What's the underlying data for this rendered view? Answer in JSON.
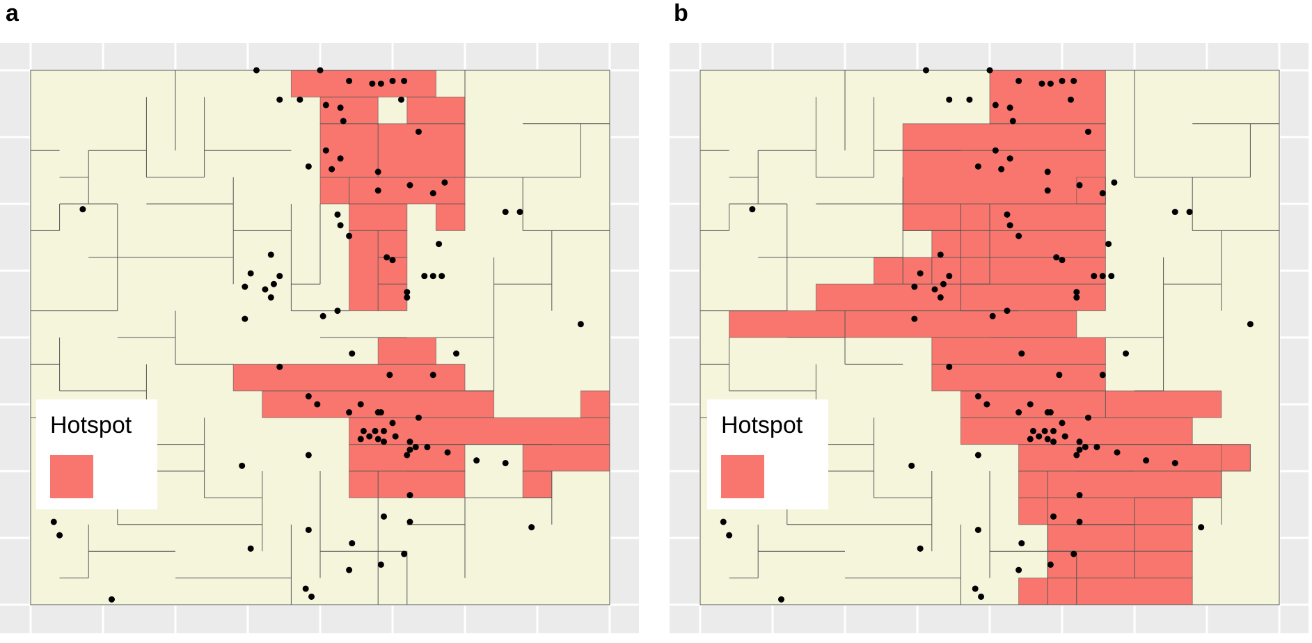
{
  "panels": [
    {
      "label": "a",
      "legend": {
        "title": "Hotspot",
        "color": "#f8766d"
      },
      "hotspot_cells": [
        [
          9,
          0,
          5,
          1
        ],
        [
          10,
          1,
          2,
          1
        ],
        [
          10,
          2,
          2,
          2
        ],
        [
          10,
          4,
          1,
          1
        ],
        [
          12,
          2,
          3,
          2
        ],
        [
          13,
          1,
          2,
          1
        ],
        [
          11,
          4,
          4,
          1
        ],
        [
          11,
          5,
          2,
          1
        ],
        [
          11,
          6,
          1,
          3
        ],
        [
          12,
          6,
          1,
          1
        ],
        [
          14,
          5,
          1,
          1
        ],
        [
          12,
          7,
          1,
          1
        ],
        [
          12,
          8,
          1,
          1
        ],
        [
          12,
          10,
          2,
          1
        ],
        [
          7,
          11,
          8,
          1
        ],
        [
          8,
          12,
          8,
          1
        ],
        [
          11,
          13,
          9,
          1
        ],
        [
          19,
          12,
          1,
          1
        ],
        [
          11,
          14,
          4,
          1
        ],
        [
          17,
          14,
          3,
          1
        ],
        [
          11,
          15,
          4,
          1
        ],
        [
          17,
          15,
          1,
          1
        ]
      ],
      "points": [
        [
          7.8,
          0.0
        ],
        [
          10.0,
          0.0
        ],
        [
          11.0,
          0.4
        ],
        [
          11.8,
          0.5
        ],
        [
          12.1,
          0.5
        ],
        [
          12.5,
          0.4
        ],
        [
          12.9,
          0.4
        ],
        [
          8.6,
          1.1
        ],
        [
          9.3,
          1.1
        ],
        [
          10.2,
          1.3
        ],
        [
          10.7,
          1.4
        ],
        [
          10.8,
          1.9
        ],
        [
          12.8,
          1.1
        ],
        [
          13.4,
          2.3
        ],
        [
          10.2,
          3.0
        ],
        [
          9.6,
          3.6
        ],
        [
          10.4,
          3.7
        ],
        [
          10.7,
          3.3
        ],
        [
          12.0,
          3.8
        ],
        [
          13.1,
          4.3
        ],
        [
          14.3,
          4.2
        ],
        [
          12.0,
          4.5
        ],
        [
          13.9,
          4.6
        ],
        [
          10.6,
          5.4
        ],
        [
          10.7,
          5.8
        ],
        [
          11.0,
          6.2
        ],
        [
          12.3,
          7.0
        ],
        [
          12.5,
          7.1
        ],
        [
          14.1,
          6.5
        ],
        [
          13.6,
          7.7
        ],
        [
          13.9,
          7.7
        ],
        [
          14.2,
          7.7
        ],
        [
          1.8,
          5.2
        ],
        [
          16.4,
          5.3
        ],
        [
          16.9,
          5.3
        ],
        [
          8.3,
          6.9
        ],
        [
          7.6,
          7.6
        ],
        [
          8.6,
          7.7
        ],
        [
          8.4,
          8.0
        ],
        [
          7.4,
          8.1
        ],
        [
          8.1,
          8.2
        ],
        [
          8.3,
          8.5
        ],
        [
          13.0,
          8.3
        ],
        [
          13.0,
          8.5
        ],
        [
          10.6,
          9.0
        ],
        [
          10.1,
          9.2
        ],
        [
          7.4,
          9.3
        ],
        [
          19.0,
          9.5
        ],
        [
          11.1,
          10.6
        ],
        [
          14.7,
          10.6
        ],
        [
          8.6,
          11.1
        ],
        [
          12.4,
          11.4
        ],
        [
          13.9,
          11.4
        ],
        [
          9.6,
          12.2
        ],
        [
          9.9,
          12.5
        ],
        [
          11.4,
          12.5
        ],
        [
          11.0,
          12.8
        ],
        [
          12.0,
          12.8
        ],
        [
          12.1,
          12.8
        ],
        [
          13.4,
          13.0
        ],
        [
          12.5,
          13.2
        ],
        [
          11.5,
          13.5
        ],
        [
          11.9,
          13.5
        ],
        [
          12.2,
          13.5
        ],
        [
          11.7,
          13.7
        ],
        [
          12.6,
          13.7
        ],
        [
          12.0,
          13.8
        ],
        [
          11.4,
          13.8
        ],
        [
          12.2,
          13.9
        ],
        [
          13.1,
          13.9
        ],
        [
          13.3,
          14.1
        ],
        [
          13.7,
          14.1
        ],
        [
          13.1,
          14.2
        ],
        [
          13.0,
          14.4
        ],
        [
          14.4,
          14.3
        ],
        [
          15.4,
          14.6
        ],
        [
          16.4,
          14.7
        ],
        [
          9.6,
          14.4
        ],
        [
          7.3,
          14.8
        ],
        [
          13.1,
          15.9
        ],
        [
          12.2,
          16.7
        ],
        [
          13.1,
          16.9
        ],
        [
          9.6,
          17.2
        ],
        [
          17.3,
          17.1
        ],
        [
          0.8,
          16.9
        ],
        [
          1.0,
          17.4
        ],
        [
          7.6,
          17.9
        ],
        [
          11.1,
          17.7
        ],
        [
          12.9,
          18.1
        ],
        [
          12.1,
          18.5
        ],
        [
          11.0,
          18.7
        ],
        [
          9.5,
          19.4
        ],
        [
          9.7,
          19.7
        ],
        [
          2.8,
          19.8
        ]
      ]
    },
    {
      "label": "b",
      "legend": {
        "title": "Hotspot",
        "color": "#f8766d"
      },
      "hotspot_cells": [
        [
          10,
          0,
          4,
          2
        ],
        [
          7,
          2,
          7,
          1
        ],
        [
          7,
          3,
          7,
          2
        ],
        [
          13,
          4,
          1,
          1
        ],
        [
          7,
          5,
          7,
          1
        ],
        [
          8,
          6,
          6,
          1
        ],
        [
          8,
          7,
          6,
          1
        ],
        [
          6,
          7,
          2,
          1
        ],
        [
          4,
          8,
          10,
          1
        ],
        [
          1,
          9,
          12,
          1
        ],
        [
          8,
          10,
          6,
          1
        ],
        [
          8,
          11,
          6,
          1
        ],
        [
          9,
          12,
          5,
          1
        ],
        [
          9,
          13,
          8,
          1
        ],
        [
          14,
          12,
          4,
          1
        ],
        [
          11,
          14,
          8,
          1
        ],
        [
          18,
          14,
          1,
          1
        ],
        [
          11,
          15,
          7,
          1
        ],
        [
          11,
          16,
          6,
          1
        ],
        [
          12,
          17,
          5,
          1
        ],
        [
          12,
          18,
          5,
          1
        ],
        [
          11,
          19,
          6,
          1
        ]
      ],
      "points": [
        [
          7.8,
          0.0
        ],
        [
          10.0,
          0.0
        ],
        [
          11.0,
          0.4
        ],
        [
          11.8,
          0.5
        ],
        [
          12.1,
          0.5
        ],
        [
          12.5,
          0.4
        ],
        [
          12.9,
          0.4
        ],
        [
          8.6,
          1.1
        ],
        [
          9.3,
          1.1
        ],
        [
          10.2,
          1.3
        ],
        [
          10.7,
          1.4
        ],
        [
          10.8,
          1.9
        ],
        [
          12.8,
          1.1
        ],
        [
          13.4,
          2.3
        ],
        [
          10.2,
          3.0
        ],
        [
          9.6,
          3.6
        ],
        [
          10.4,
          3.7
        ],
        [
          10.7,
          3.3
        ],
        [
          12.0,
          3.8
        ],
        [
          13.1,
          4.3
        ],
        [
          14.3,
          4.2
        ],
        [
          12.0,
          4.5
        ],
        [
          13.9,
          4.6
        ],
        [
          10.6,
          5.4
        ],
        [
          10.7,
          5.8
        ],
        [
          11.0,
          6.2
        ],
        [
          12.3,
          7.0
        ],
        [
          12.5,
          7.1
        ],
        [
          14.1,
          6.5
        ],
        [
          13.6,
          7.7
        ],
        [
          13.9,
          7.7
        ],
        [
          14.2,
          7.7
        ],
        [
          1.8,
          5.2
        ],
        [
          16.4,
          5.3
        ],
        [
          16.9,
          5.3
        ],
        [
          8.3,
          6.9
        ],
        [
          7.6,
          7.6
        ],
        [
          8.6,
          7.7
        ],
        [
          8.4,
          8.0
        ],
        [
          7.4,
          8.1
        ],
        [
          8.1,
          8.2
        ],
        [
          8.3,
          8.5
        ],
        [
          13.0,
          8.3
        ],
        [
          13.0,
          8.5
        ],
        [
          10.6,
          9.0
        ],
        [
          10.1,
          9.2
        ],
        [
          7.4,
          9.3
        ],
        [
          19.0,
          9.5
        ],
        [
          11.1,
          10.6
        ],
        [
          14.7,
          10.6
        ],
        [
          8.6,
          11.1
        ],
        [
          12.4,
          11.4
        ],
        [
          13.9,
          11.4
        ],
        [
          9.6,
          12.2
        ],
        [
          9.9,
          12.5
        ],
        [
          11.4,
          12.5
        ],
        [
          11.0,
          12.8
        ],
        [
          12.0,
          12.8
        ],
        [
          12.1,
          12.8
        ],
        [
          13.4,
          13.0
        ],
        [
          12.5,
          13.2
        ],
        [
          11.5,
          13.5
        ],
        [
          11.9,
          13.5
        ],
        [
          12.2,
          13.5
        ],
        [
          11.7,
          13.7
        ],
        [
          12.6,
          13.7
        ],
        [
          12.0,
          13.8
        ],
        [
          11.4,
          13.8
        ],
        [
          12.2,
          13.9
        ],
        [
          13.1,
          13.9
        ],
        [
          13.3,
          14.1
        ],
        [
          13.7,
          14.1
        ],
        [
          13.1,
          14.2
        ],
        [
          13.0,
          14.4
        ],
        [
          14.4,
          14.3
        ],
        [
          15.4,
          14.6
        ],
        [
          16.4,
          14.7
        ],
        [
          9.6,
          14.4
        ],
        [
          7.3,
          14.8
        ],
        [
          13.1,
          15.9
        ],
        [
          12.2,
          16.7
        ],
        [
          13.1,
          16.9
        ],
        [
          9.6,
          17.2
        ],
        [
          17.3,
          17.1
        ],
        [
          0.8,
          16.9
        ],
        [
          1.0,
          17.4
        ],
        [
          7.6,
          17.9
        ],
        [
          11.1,
          17.7
        ],
        [
          12.9,
          18.1
        ],
        [
          12.1,
          18.5
        ],
        [
          11.0,
          18.7
        ],
        [
          9.5,
          19.4
        ],
        [
          9.7,
          19.7
        ],
        [
          2.8,
          19.8
        ]
      ]
    }
  ],
  "colors": {
    "background_grey": "#ebebeb",
    "grid_white": "#ffffff",
    "region_fill": "#f5f5dc",
    "region_line": "#555555",
    "point": "#000000"
  }
}
